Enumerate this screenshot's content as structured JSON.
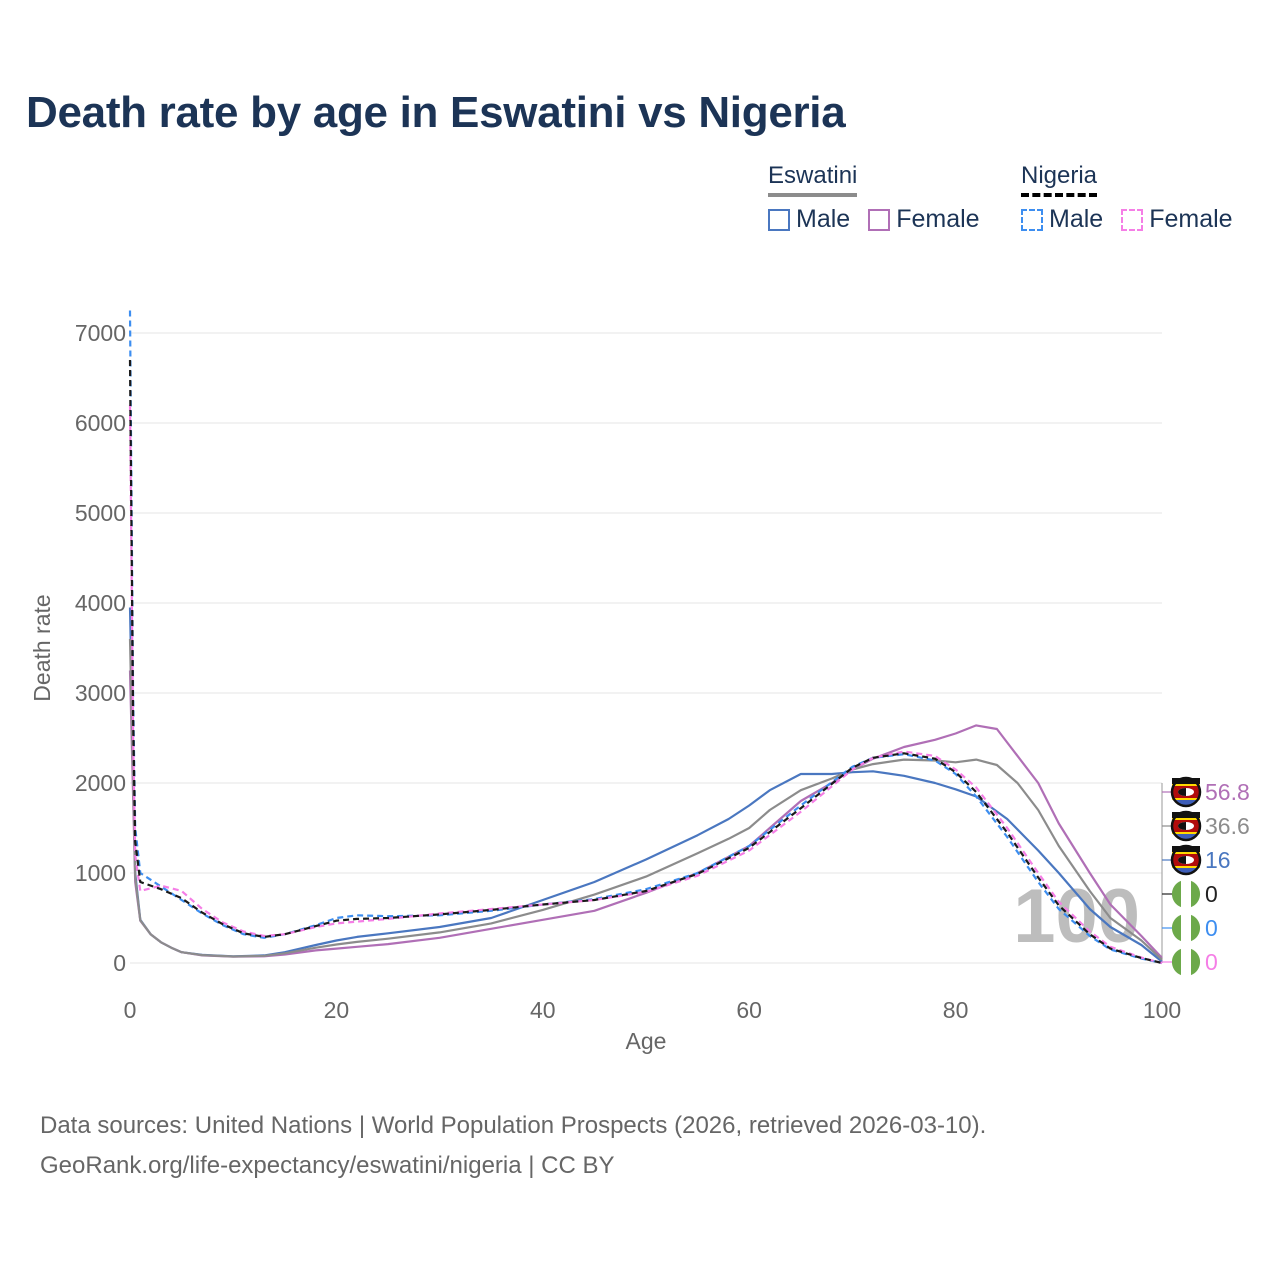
{
  "title": "Death rate by age in Eswatini vs Nigeria",
  "legend": {
    "groups": [
      {
        "name": "Eswatini",
        "underline_color": "#8c8c8c",
        "underline_style": "solid",
        "items": [
          {
            "label": "Male",
            "color": "#4a77c0",
            "style": "solid"
          },
          {
            "label": "Female",
            "color": "#b06fb6",
            "style": "solid"
          }
        ]
      },
      {
        "name": "Nigeria",
        "underline_color": "#000000",
        "underline_style": "dashed",
        "items": [
          {
            "label": "Male",
            "color": "#3d8ef0",
            "style": "dashed"
          },
          {
            "label": "Female",
            "color": "#f57ee6",
            "style": "dashed"
          }
        ]
      }
    ]
  },
  "end_labels": [
    {
      "text": "56.8",
      "color": "#b06fb6",
      "flag": "eswatini"
    },
    {
      "text": "36.6",
      "color": "#8c8c8c",
      "flag": "eswatini"
    },
    {
      "text": "16",
      "color": "#4a77c0",
      "flag": "eswatini"
    },
    {
      "text": "0",
      "color": "#222222",
      "flag": "nigeria"
    },
    {
      "text": "0",
      "color": "#3d8ef0",
      "flag": "nigeria"
    },
    {
      "text": "0",
      "color": "#f57ee6",
      "flag": "nigeria"
    }
  ],
  "watermark": "100",
  "source": {
    "line1": "Data sources: United Nations | World Population Prospects (2026, retrieved 2026-03-10).",
    "line2": "GeoRank.org/life-expectancy/eswatini/nigeria | CC BY"
  },
  "chart_data": {
    "type": "line",
    "title": "Death rate by age in Eswatini vs Nigeria",
    "xlabel": "Age",
    "ylabel": "Death rate",
    "xlim": [
      0,
      100
    ],
    "ylim": [
      0,
      7000
    ],
    "xticks": [
      0,
      20,
      40,
      60,
      80,
      100
    ],
    "yticks": [
      0,
      1000,
      2000,
      3000,
      4000,
      5000,
      6000,
      7000
    ],
    "grid": true,
    "series": [
      {
        "name": "Eswatini Male",
        "country": "Eswatini",
        "sex": "Male",
        "color": "#4a77c0",
        "dash": "solid",
        "x": [
          0,
          0.5,
          1,
          2,
          3,
          4,
          5,
          7,
          10,
          13,
          15,
          18,
          20,
          22,
          25,
          30,
          35,
          40,
          45,
          50,
          55,
          58,
          60,
          62,
          65,
          68,
          70,
          72,
          75,
          78,
          80,
          82,
          85,
          88,
          90,
          93,
          95,
          98,
          100
        ],
        "y": [
          3950,
          1000,
          480,
          320,
          230,
          170,
          120,
          90,
          75,
          85,
          120,
          200,
          250,
          290,
          330,
          400,
          500,
          700,
          900,
          1150,
          1420,
          1600,
          1750,
          1920,
          2100,
          2100,
          2120,
          2130,
          2080,
          2000,
          1930,
          1850,
          1600,
          1250,
          1000,
          600,
          400,
          200,
          16
        ]
      },
      {
        "name": "Eswatini Female",
        "country": "Eswatini",
        "sex": "Female",
        "color": "#b06fb6",
        "dash": "solid",
        "x": [
          0,
          0.5,
          1,
          2,
          3,
          4,
          5,
          7,
          10,
          13,
          15,
          18,
          20,
          22,
          25,
          30,
          35,
          40,
          45,
          50,
          55,
          58,
          60,
          62,
          65,
          68,
          70,
          72,
          75,
          78,
          80,
          82,
          84,
          85,
          88,
          90,
          93,
          95,
          98,
          100
        ],
        "y": [
          3250,
          900,
          470,
          320,
          230,
          170,
          120,
          85,
          70,
          75,
          95,
          140,
          160,
          180,
          210,
          280,
          380,
          480,
          580,
          780,
          1000,
          1180,
          1300,
          1500,
          1800,
          2000,
          2150,
          2270,
          2400,
          2480,
          2550,
          2640,
          2600,
          2450,
          2000,
          1550,
          1000,
          650,
          300,
          56.8
        ]
      },
      {
        "name": "Eswatini Total",
        "country": "Eswatini",
        "sex": "Total",
        "color": "#8c8c8c",
        "dash": "solid",
        "x": [
          0,
          0.5,
          1,
          2,
          3,
          4,
          5,
          7,
          10,
          13,
          15,
          18,
          20,
          22,
          25,
          30,
          35,
          40,
          45,
          50,
          55,
          58,
          60,
          62,
          65,
          68,
          70,
          72,
          75,
          78,
          80,
          82,
          84,
          86,
          88,
          90,
          93,
          95,
          98,
          100
        ],
        "y": [
          3600,
          950,
          475,
          320,
          230,
          170,
          120,
          88,
          72,
          80,
          108,
          170,
          205,
          235,
          270,
          340,
          440,
          590,
          760,
          960,
          1220,
          1380,
          1500,
          1700,
          1920,
          2050,
          2150,
          2210,
          2260,
          2250,
          2230,
          2260,
          2200,
          2000,
          1700,
          1300,
          800,
          500,
          250,
          36.6
        ]
      },
      {
        "name": "Nigeria Male",
        "country": "Nigeria",
        "sex": "Male",
        "color": "#3d8ef0",
        "dash": "dashed",
        "x": [
          0,
          0.3,
          0.5,
          1,
          3,
          5,
          7,
          9,
          11,
          13,
          15,
          18,
          20,
          22,
          25,
          30,
          35,
          40,
          45,
          50,
          55,
          60,
          65,
          70,
          72,
          75,
          78,
          80,
          82,
          85,
          88,
          90,
          93,
          95,
          98,
          100
        ],
        "y": [
          7250,
          3000,
          1500,
          1000,
          850,
          700,
          550,
          420,
          320,
          280,
          320,
          420,
          500,
          530,
          520,
          530,
          580,
          650,
          710,
          820,
          1000,
          1300,
          1750,
          2180,
          2280,
          2320,
          2250,
          2100,
          1850,
          1400,
          900,
          600,
          300,
          150,
          50,
          0
        ]
      },
      {
        "name": "Nigeria Female",
        "country": "Nigeria",
        "sex": "Female",
        "color": "#f57ee6",
        "dash": "dashed",
        "x": [
          0,
          0.3,
          0.5,
          1,
          3,
          5,
          7,
          9,
          11,
          13,
          15,
          18,
          20,
          22,
          25,
          30,
          35,
          40,
          45,
          50,
          55,
          60,
          65,
          70,
          72,
          75,
          78,
          80,
          82,
          85,
          88,
          90,
          93,
          95,
          98,
          100
        ],
        "y": [
          6200,
          2500,
          1200,
          800,
          860,
          800,
          600,
          450,
          350,
          300,
          320,
          400,
          440,
          460,
          490,
          550,
          600,
          650,
          700,
          790,
          970,
          1250,
          1680,
          2150,
          2280,
          2350,
          2300,
          2150,
          1950,
          1500,
          1000,
          680,
          350,
          180,
          60,
          0
        ]
      },
      {
        "name": "Nigeria Total",
        "country": "Nigeria",
        "sex": "Total",
        "color": "#1a1a1a",
        "dash": "dashed",
        "x": [
          0,
          0.3,
          0.5,
          1,
          3,
          5,
          7,
          9,
          11,
          13,
          15,
          18,
          20,
          22,
          25,
          30,
          35,
          40,
          45,
          50,
          55,
          60,
          65,
          70,
          72,
          75,
          78,
          80,
          82,
          85,
          88,
          90,
          93,
          95,
          98,
          100
        ],
        "y": [
          6700,
          2750,
          1350,
          900,
          820,
          720,
          560,
          430,
          330,
          290,
          320,
          410,
          470,
          490,
          500,
          540,
          590,
          650,
          700,
          800,
          990,
          1280,
          1720,
          2170,
          2280,
          2330,
          2270,
          2120,
          1900,
          1450,
          950,
          640,
          320,
          160,
          55,
          0
        ]
      }
    ]
  }
}
